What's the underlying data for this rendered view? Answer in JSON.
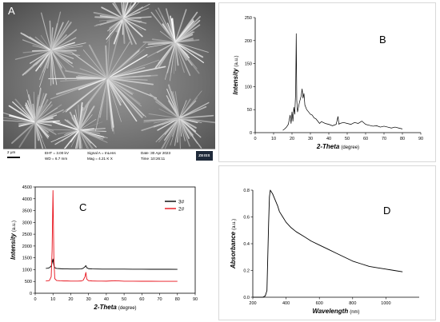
{
  "panel_a": {
    "letter": "A",
    "scale_label": "2 μm",
    "ehtt": "EHT =  3.00 kV",
    "wd": "WD =  6.7 mm",
    "signal": "Signal A = InLens",
    "mag": "Mag =  4.21 K X",
    "date": "Date :30 Apr 2023",
    "time": "Time :10:26:11",
    "logo": "ZEISS"
  },
  "chart_data": [
    {
      "panel": "B",
      "type": "line",
      "xlabel": "2-Theta",
      "xlabel_unit": "(degree)",
      "ylabel": "Intensity",
      "ylabel_unit": "(a.u.)",
      "xlim": [
        0,
        90
      ],
      "ylim": [
        0,
        250
      ],
      "xticks": [
        "0",
        "10",
        "20",
        "30",
        "40",
        "50",
        "60",
        "70",
        "80",
        "90"
      ],
      "yticks": [
        "0",
        "50",
        "100",
        "150",
        "200",
        "250"
      ],
      "grid": false,
      "color": "#000000",
      "series": [
        {
          "x": [
            15,
            16,
            17,
            18,
            19,
            19.5,
            20,
            20.5,
            21,
            21.5,
            22,
            22.3,
            22.6,
            23,
            23.5,
            24,
            25,
            25.5,
            26,
            26.5,
            27,
            27.5,
            28,
            29,
            30,
            31,
            32,
            33,
            34,
            35,
            36,
            38,
            40,
            42,
            44,
            45,
            45.5,
            46,
            48,
            50,
            52,
            54,
            56,
            58,
            60,
            62,
            64,
            66,
            68,
            70,
            72,
            74,
            76,
            78,
            80
          ],
          "y": [
            5,
            8,
            12,
            18,
            38,
            20,
            45,
            25,
            55,
            40,
            90,
            215,
            70,
            45,
            55,
            65,
            80,
            95,
            75,
            85,
            60,
            55,
            50,
            45,
            40,
            38,
            32,
            30,
            25,
            20,
            24,
            20,
            18,
            15,
            18,
            35,
            18,
            20,
            22,
            20,
            18,
            22,
            20,
            25,
            18,
            16,
            14,
            15,
            12,
            14,
            12,
            10,
            12,
            10,
            8
          ]
        }
      ]
    },
    {
      "panel": "C",
      "type": "line",
      "xlabel": "2-Theta",
      "xlabel_unit": "(degree)",
      "ylabel": "Intensity",
      "ylabel_unit": "(a.u.)",
      "xlim": [
        0,
        90
      ],
      "ylim": [
        0,
        4500
      ],
      "xticks": [
        "0",
        "10",
        "20",
        "30",
        "40",
        "50",
        "60",
        "70",
        "80",
        "90"
      ],
      "yticks": [
        "0",
        "500",
        "1000",
        "1500",
        "2000",
        "2500",
        "3000",
        "3500",
        "4000",
        "4500"
      ],
      "legend": "top-right",
      "grid": false,
      "series": [
        {
          "name": "3#",
          "color": "#000000",
          "x": [
            6,
            7,
            8,
            9,
            9.5,
            10,
            10.5,
            11,
            12,
            14,
            16,
            18,
            20,
            22,
            24,
            26,
            27,
            28,
            28.5,
            29,
            30,
            32,
            35,
            40,
            45,
            50,
            55,
            60,
            65,
            70,
            75,
            80
          ],
          "y": [
            1050,
            1060,
            1080,
            1150,
            1300,
            1450,
            1180,
            1080,
            1050,
            1040,
            1030,
            1030,
            1025,
            1025,
            1025,
            1030,
            1060,
            1120,
            1170,
            1080,
            1040,
            1030,
            1025,
            1020,
            1020,
            1020,
            1018,
            1018,
            1015,
            1015,
            1015,
            1012
          ]
        },
        {
          "name": "2#",
          "color": "#e8101a",
          "x": [
            6,
            7,
            8,
            9,
            9.5,
            10,
            10.5,
            11,
            12,
            14,
            16,
            18,
            20,
            22,
            24,
            26,
            27,
            28,
            28.5,
            29,
            30,
            32,
            35,
            40,
            45,
            50,
            55,
            60,
            65,
            70,
            75,
            80
          ],
          "y": [
            520,
            525,
            540,
            700,
            1800,
            4350,
            1500,
            620,
            540,
            525,
            520,
            520,
            515,
            515,
            515,
            520,
            550,
            700,
            880,
            600,
            530,
            520,
            515,
            512,
            530,
            510,
            510,
            508,
            508,
            506,
            505,
            505
          ]
        }
      ]
    },
    {
      "panel": "D",
      "type": "line",
      "xlabel": "Wavelength",
      "xlabel_unit": "(nm)",
      "ylabel": "Absorbance",
      "ylabel_unit": "(a.u.)",
      "xlim": [
        200,
        1200
      ],
      "ylim": [
        0,
        0.8
      ],
      "xticks": [
        "200",
        "400",
        "600",
        "800",
        "1000"
      ],
      "yticks": [
        "0.0",
        "0.2",
        "0.4",
        "0.6",
        "0.8"
      ],
      "grid": false,
      "color": "#000000",
      "series": [
        {
          "x": [
            200,
            240,
            260,
            275,
            285,
            290,
            295,
            300,
            305,
            310,
            320,
            330,
            340,
            350,
            360,
            380,
            400,
            430,
            460,
            500,
            550,
            600,
            650,
            700,
            750,
            800,
            850,
            900,
            950,
            1000,
            1050,
            1100
          ],
          "y": [
            0.0,
            0.0,
            0.0,
            0.01,
            0.05,
            0.3,
            0.55,
            0.75,
            0.8,
            0.79,
            0.77,
            0.74,
            0.71,
            0.68,
            0.64,
            0.6,
            0.56,
            0.52,
            0.49,
            0.46,
            0.42,
            0.39,
            0.36,
            0.33,
            0.3,
            0.27,
            0.25,
            0.23,
            0.22,
            0.21,
            0.2,
            0.19
          ]
        }
      ]
    }
  ]
}
